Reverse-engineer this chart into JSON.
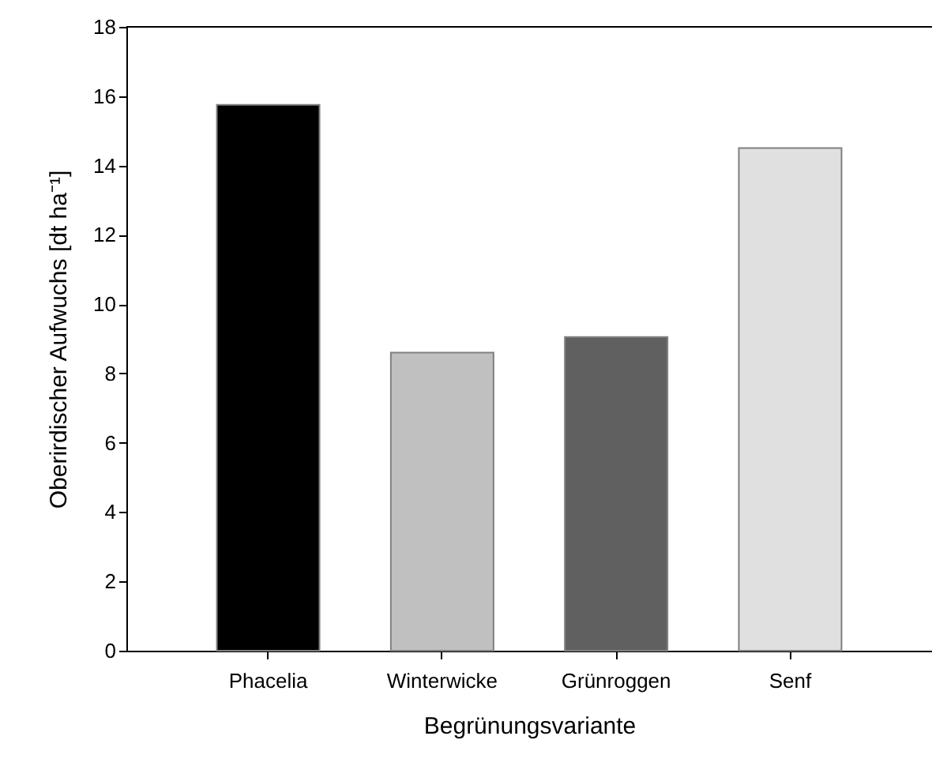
{
  "chart_data": {
    "type": "bar",
    "xlabel": "Begrünungsvariante",
    "ylabel": "Oberirdischer Aufwuchs [dt ha⁻¹]",
    "categories": [
      "Phacelia",
      "Winterwicke",
      "Grünroggen",
      "Senf"
    ],
    "values": [
      15.75,
      8.6,
      9.05,
      14.5
    ],
    "colors": [
      "#000000",
      "#c0c0c0",
      "#606060",
      "#e0e0e0"
    ],
    "ylim": [
      0,
      18
    ],
    "yticks": [
      0,
      2,
      4,
      6,
      8,
      10,
      12,
      14,
      16,
      18
    ]
  }
}
